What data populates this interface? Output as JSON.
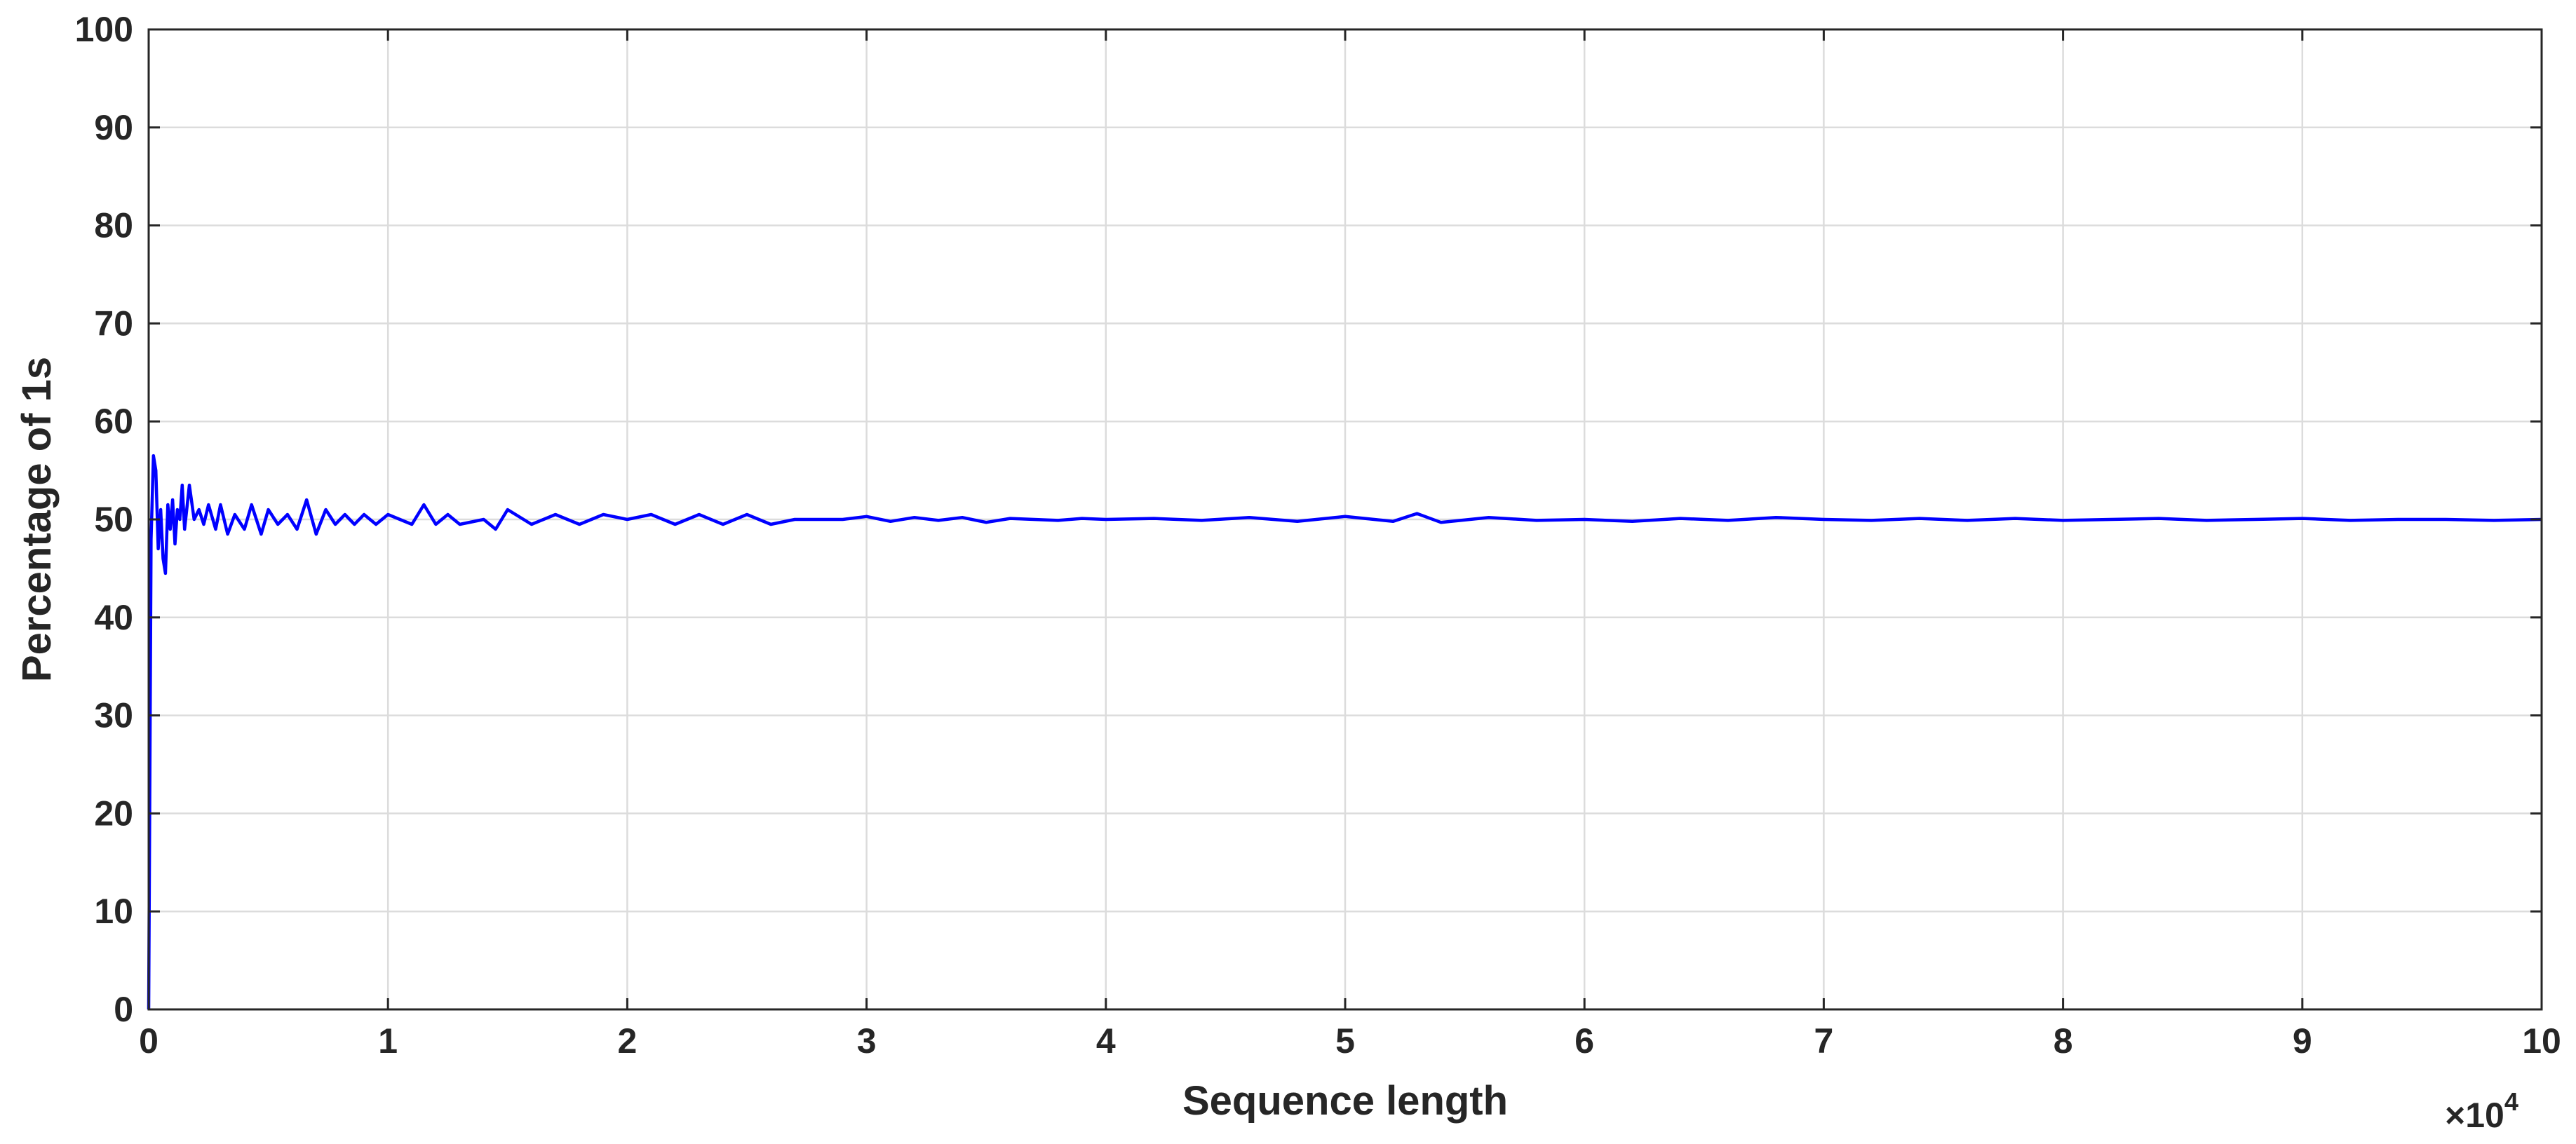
{
  "chart_data": {
    "type": "line",
    "title": "",
    "xlabel": "Sequence length",
    "ylabel": "Percentage of 1s",
    "xlim": [
      0,
      100000
    ],
    "ylim": [
      0,
      100
    ],
    "x_ticks": [
      0,
      10000,
      20000,
      30000,
      40000,
      50000,
      60000,
      70000,
      80000,
      90000,
      100000
    ],
    "x_tick_labels": [
      "0",
      "1",
      "2",
      "3",
      "4",
      "5",
      "6",
      "7",
      "8",
      "9",
      "10"
    ],
    "x_multiplier_label": "×10",
    "x_multiplier_exponent": "4",
    "y_ticks": [
      0,
      10,
      20,
      30,
      40,
      50,
      60,
      70,
      80,
      90,
      100
    ],
    "y_tick_labels": [
      "0",
      "10",
      "20",
      "30",
      "40",
      "50",
      "60",
      "70",
      "80",
      "90",
      "100"
    ],
    "grid": true,
    "series": [
      {
        "color": "#0000ff",
        "x": [
          0,
          100,
          200,
          300,
          400,
          500,
          600,
          700,
          800,
          900,
          1000,
          1100,
          1200,
          1300,
          1400,
          1500,
          1700,
          1900,
          2100,
          2300,
          2500,
          2800,
          3000,
          3300,
          3600,
          4000,
          4300,
          4700,
          5000,
          5400,
          5800,
          6200,
          6600,
          7000,
          7400,
          7800,
          8200,
          8600,
          9000,
          9500,
          10000,
          11000,
          11500,
          12000,
          12500,
          13000,
          14000,
          14500,
          15000,
          16000,
          17000,
          18000,
          19000,
          20000,
          21000,
          22000,
          23000,
          24000,
          25000,
          26000,
          27000,
          28000,
          29000,
          30000,
          31000,
          32000,
          33000,
          34000,
          35000,
          36000,
          37000,
          38000,
          39000,
          40000,
          42000,
          44000,
          46000,
          48000,
          50000,
          52000,
          53000,
          54000,
          56000,
          58000,
          60000,
          62000,
          64000,
          66000,
          68000,
          70000,
          72000,
          74000,
          76000,
          78000,
          80000,
          82000,
          84000,
          86000,
          88000,
          90000,
          92000,
          94000,
          96000,
          98000,
          100000
        ],
        "y": [
          0,
          48,
          56.5,
          55,
          47,
          51,
          46,
          44.5,
          51.5,
          49,
          52,
          47.5,
          51,
          50,
          53.5,
          49,
          53.5,
          50,
          51,
          49.5,
          51.5,
          49,
          51.5,
          48.5,
          50.5,
          49,
          51.5,
          48.5,
          51,
          49.5,
          50.5,
          49,
          52,
          48.5,
          51,
          49.5,
          50.5,
          49.5,
          50.5,
          49.5,
          50.5,
          49.5,
          51.5,
          49.5,
          50.5,
          49.5,
          50,
          49,
          51,
          49.5,
          50.5,
          49.5,
          50.5,
          50,
          50.5,
          49.5,
          50.5,
          49.5,
          50.5,
          49.5,
          50,
          50,
          50,
          50.3,
          49.8,
          50.2,
          49.9,
          50.2,
          49.7,
          50.1,
          50,
          49.9,
          50.1,
          50,
          50.1,
          49.9,
          50.2,
          49.8,
          50.3,
          49.8,
          50.6,
          49.7,
          50.2,
          49.9,
          50,
          49.8,
          50.1,
          49.9,
          50.2,
          50,
          49.9,
          50.1,
          49.9,
          50.1,
          49.9,
          50,
          50.1,
          49.9,
          50,
          50.1,
          49.9,
          50,
          50,
          49.9,
          50
        ]
      }
    ]
  }
}
